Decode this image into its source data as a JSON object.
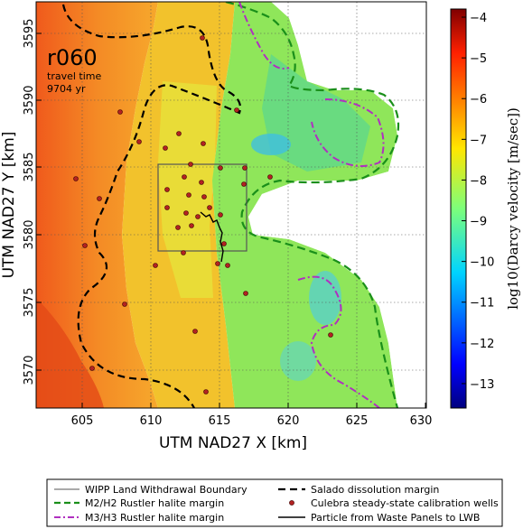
{
  "map": {
    "run_label": "r060",
    "travel_time_label": "travel time",
    "travel_time_value": "9704 yr",
    "x_axis_label": "UTM NAD27 X [km]",
    "y_axis_label": "UTM NAD27 Y [km]",
    "x_ticks": [
      "605",
      "610",
      "615",
      "620",
      "625",
      "630"
    ],
    "y_ticks": [
      "3570",
      "3575",
      "3580",
      "3585",
      "3590",
      "3595"
    ],
    "x_range_km": [
      601.5,
      630
    ],
    "y_range_km": [
      3566.5,
      3596.7
    ],
    "colorbar": {
      "label": "log10(Darcy velocity [m/sec])",
      "ticks": [
        "−4",
        "−5",
        "−6",
        "−7",
        "−8",
        "−9",
        "−10",
        "−11",
        "−12",
        "−13"
      ],
      "range": [
        -13.6,
        -3.8
      ],
      "colormap": "jet"
    },
    "grid": true
  },
  "legend": {
    "items": [
      {
        "label": "WIPP Land Withdrawal Boundary",
        "style": "thin-solid",
        "color": "#555555"
      },
      {
        "label": "Salado dissolution margin",
        "style": "dashed",
        "color": "#000000"
      },
      {
        "label": "M2/H2 Rustler halite margin",
        "style": "dashed",
        "color": "#1a8f1a"
      },
      {
        "label": "Culebra steady-state calibration wells",
        "style": "dot",
        "color": "#b22222"
      },
      {
        "label": "M3/H3 Rustler halite margin",
        "style": "dash-dot",
        "color": "#b030c0"
      },
      {
        "label": "Particle from Waste Panels to LWB",
        "style": "solid",
        "color": "#000000"
      }
    ]
  },
  "colors": {
    "west_high": "#f06a1e",
    "transition": "#e8d42a",
    "east_low": "#8fe65a",
    "halite_low": "#3fbfe0",
    "well_dot": "#b22222",
    "salado_margin": "#000000",
    "m2h2_margin": "#1a8f1a",
    "m3h3_margin": "#b030c0"
  }
}
